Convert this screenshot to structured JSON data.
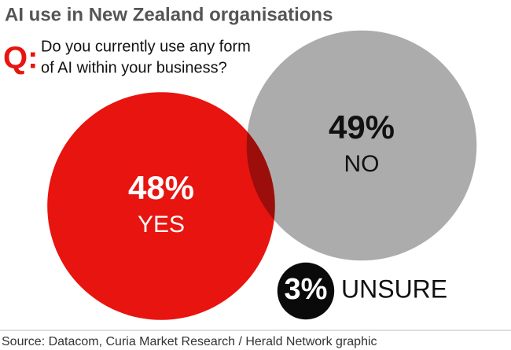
{
  "chart_data": {
    "type": "proportional-circles",
    "title": "AI use in New Zealand organisations",
    "question_label": "Q:",
    "question": [
      "Do you currently use any form",
      "of AI within your business?"
    ],
    "categories": [
      "YES",
      "NO",
      "UNSURE"
    ],
    "values": [
      48,
      49,
      3
    ],
    "value_labels": [
      "48%",
      "49%",
      "3%"
    ],
    "colors": [
      "#e8140f",
      "#acacac",
      "#0a0a0a"
    ],
    "source": "Source: Datacom, Curia Market Research / Herald Network graphic"
  }
}
